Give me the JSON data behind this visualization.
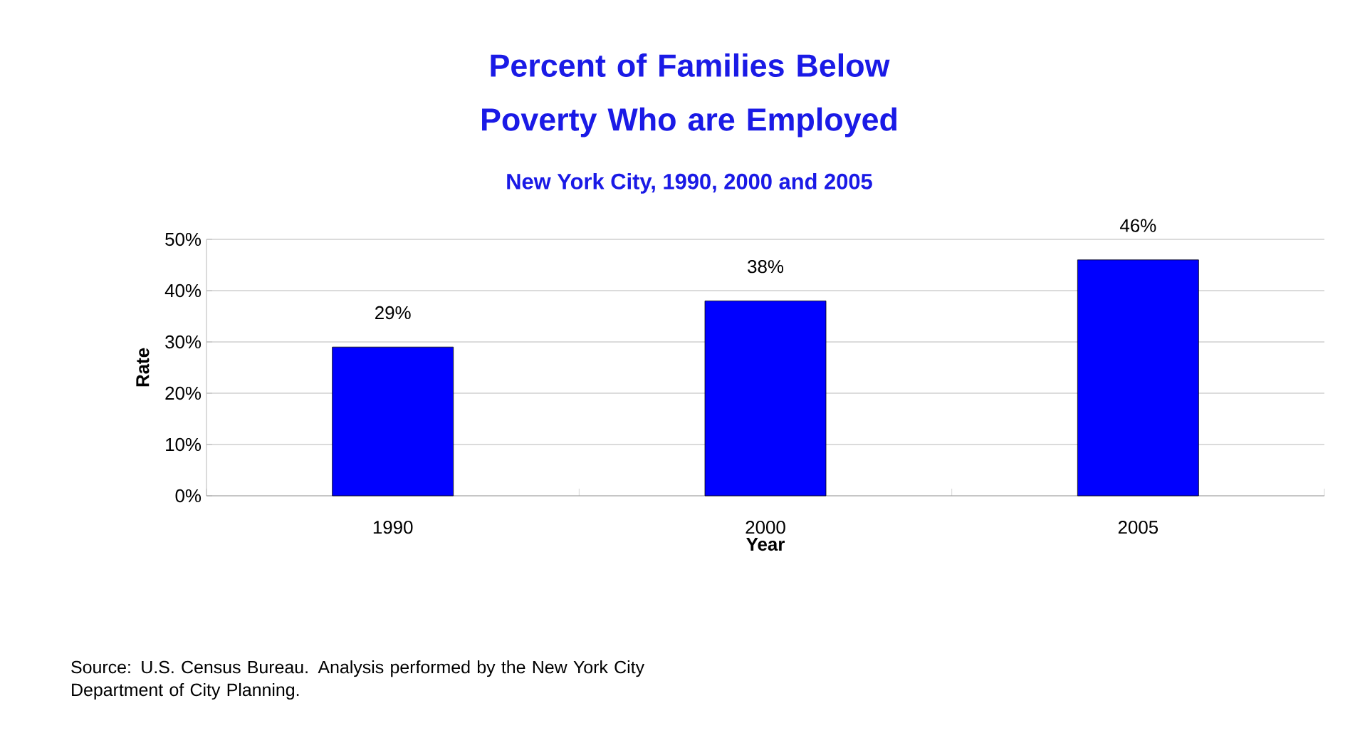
{
  "chart_data": {
    "type": "bar",
    "title": "Percent of Families Below Poverty Who are Employed",
    "subtitle": "New York City, 1990, 2000 and 2005",
    "xlabel": "Year",
    "ylabel": "Rate",
    "categories": [
      "1990",
      "2000",
      "2005"
    ],
    "values": [
      29,
      38,
      46
    ],
    "value_labels": [
      "29%",
      "38%",
      "46%"
    ],
    "color": "#0000ff",
    "ylim": [
      0,
      50
    ],
    "yticks": [
      {
        "value": 0,
        "label": "0%"
      },
      {
        "value": 10,
        "label": "10%"
      },
      {
        "value": 20,
        "label": "20%"
      },
      {
        "value": 30,
        "label": "30%"
      },
      {
        "value": 40,
        "label": "40%"
      },
      {
        "value": 50,
        "label": "50%"
      }
    ],
    "grid": "y",
    "annotations": [
      "Source:  U.S. Census Bureau.  Analysis performed by the New York City Department of City Planning."
    ]
  }
}
